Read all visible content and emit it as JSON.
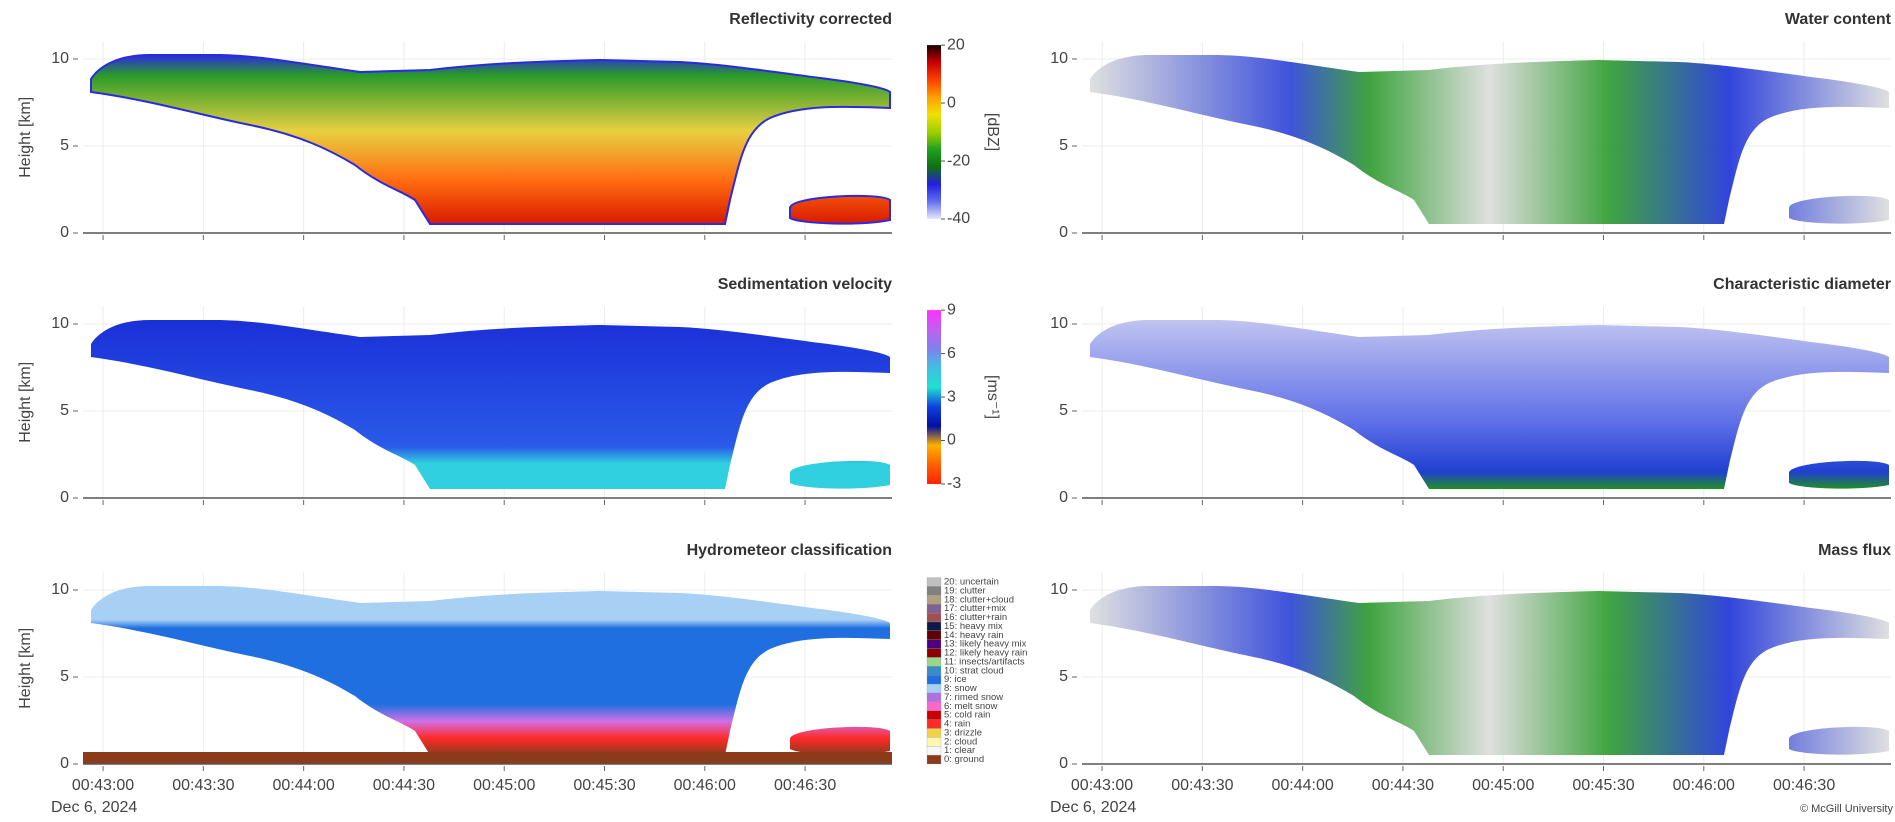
{
  "chart_data": [
    {
      "type": "heatmap",
      "title": "Reflectivity corrected",
      "ylabel": "Height [km]",
      "ylim": [
        0,
        11
      ],
      "yticks": [
        0,
        5,
        10
      ],
      "grid": true,
      "colorbar": {
        "label": "[dBZ]",
        "lim": [
          -40,
          20
        ],
        "ticks": [
          20,
          0,
          -20,
          -40
        ],
        "colors": [
          "#1a0000",
          "#c80000",
          "#ff4000",
          "#ffa000",
          "#f0e000",
          "#a0d000",
          "#20a020",
          "#107010",
          "#2020e0",
          "#6070f0",
          "#e8e8f8"
        ]
      }
    },
    {
      "type": "heatmap",
      "title": "Water content",
      "ylim": [
        0,
        11
      ],
      "yticks": [
        0,
        5,
        10
      ],
      "grid": true
    },
    {
      "type": "heatmap",
      "title": "Sedimentation velocity",
      "ylabel": "Height [km]",
      "ylim": [
        0,
        11
      ],
      "yticks": [
        0,
        5,
        10
      ],
      "grid": true,
      "colorbar": {
        "label": "[ms⁻¹]",
        "lim": [
          -3,
          9
        ],
        "ticks": [
          9,
          6,
          3,
          0,
          -3
        ],
        "colors": [
          "#ff30ff",
          "#c060f0",
          "#8080f0",
          "#40c0e0",
          "#20e0d0",
          "#1040e0",
          "#0010a0",
          "#ffb000",
          "#ff6000",
          "#ff2000"
        ]
      }
    },
    {
      "type": "heatmap",
      "title": "Characteristic diameter",
      "ylim": [
        0,
        11
      ],
      "yticks": [
        0,
        5,
        10
      ],
      "grid": true
    },
    {
      "type": "heatmap",
      "title": "Hydrometeor classification",
      "ylabel": "Height [km]",
      "ylim": [
        0,
        11
      ],
      "yticks": [
        0,
        5,
        10
      ],
      "grid": true,
      "xlim": [
        "00:42:54",
        "00:46:56"
      ],
      "xticks": [
        "00:43:00",
        "00:43:30",
        "00:44:00",
        "00:44:30",
        "00:45:00",
        "00:45:30",
        "00:46:00",
        "00:46:30"
      ],
      "x_sublabel": "Dec 6, 2024",
      "legend": {
        "categories": [
          "20: uncertain",
          "19: clutter",
          "18: clutter+cloud",
          "17: clutter+mix",
          "16: clutter+rain",
          "15: heavy mix",
          "14: heavy rain",
          "13: likely heavy mix",
          "12: likely heavy rain",
          "11: insects/artifacts",
          "10: strat cloud",
          "9: ice",
          "8: snow",
          "7: rimed snow",
          "6: melt snow",
          "5: cold rain",
          "4: rain",
          "3: drizzle",
          "2: cloud",
          "1: clear",
          "0: ground"
        ],
        "colors": [
          "#c0c0c0",
          "#808080",
          "#b0a080",
          "#806090",
          "#a05050",
          "#0a1a4a",
          "#600000",
          "#4b0082",
          "#8b0000",
          "#9ad68a",
          "#3a8cc8",
          "#1f6fe0",
          "#a8d0f5",
          "#b070e0",
          "#ff66cc",
          "#c80000",
          "#ff2a2a",
          "#f2d24a",
          "#fff7b0",
          "#f7f7f7",
          "#8b3a1a"
        ]
      }
    },
    {
      "type": "heatmap",
      "title": "Mass flux",
      "ylim": [
        0,
        11
      ],
      "yticks": [
        0,
        5,
        10
      ],
      "grid": true,
      "xlim": [
        "00:42:54",
        "00:46:56"
      ],
      "xticks": [
        "00:43:00",
        "00:43:30",
        "00:44:00",
        "00:44:30",
        "00:45:00",
        "00:45:30",
        "00:46:00",
        "00:46:30"
      ],
      "x_sublabel": "Dec 6, 2024"
    }
  ],
  "credit": "© McGill University"
}
